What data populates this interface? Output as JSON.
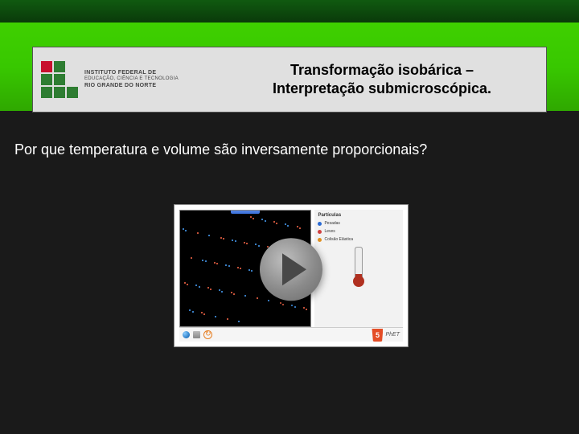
{
  "header": {
    "logo": {
      "line1": "INSTITUTO FEDERAL DE",
      "line2": "EDUCAÇÃO, CIÊNCIA E TECNOLOGIA",
      "line3": "RIO GRANDE DO NORTE",
      "square_colors": {
        "red": "#c8102e",
        "green": "#2e7d32"
      }
    },
    "title_line1": "Transformação isobárica –",
    "title_line2": "Interpretação submicroscópica.",
    "title_fontsize": 18,
    "green_gradient": [
      "#3fd000",
      "#2fa800"
    ],
    "top_bar_gradient": [
      "#105a10",
      "#0a3a0a"
    ],
    "card_bg": "#e0e0e0"
  },
  "body": {
    "question": "Por que temperatura e volume são inversamente proporcionais?",
    "question_color": "#ffffff",
    "question_fontsize": 18,
    "background_color": "#1a1a1a"
  },
  "video": {
    "type": "simulation-thumbnail",
    "play_button": true,
    "controls": {
      "title": "Partículas",
      "optA": {
        "label": "Pesadas",
        "color": "#2a6ad4"
      },
      "optB": {
        "label": "Leves",
        "color": "#d04040"
      },
      "optC": {
        "label": "Colisão Elástica",
        "color": "#e09020"
      }
    },
    "particles": {
      "box_bg": "#000000",
      "count": 70,
      "colors": [
        "#4aa3ff",
        "#ff6a4a"
      ]
    },
    "bottom": {
      "html5": "5",
      "phet": "PhET"
    },
    "colors": {
      "frame_bg": "#ffffff",
      "controls_bg": "#f2f2f2",
      "thermo_fill": "#b03020",
      "html5_badge": "#e44d26"
    }
  }
}
